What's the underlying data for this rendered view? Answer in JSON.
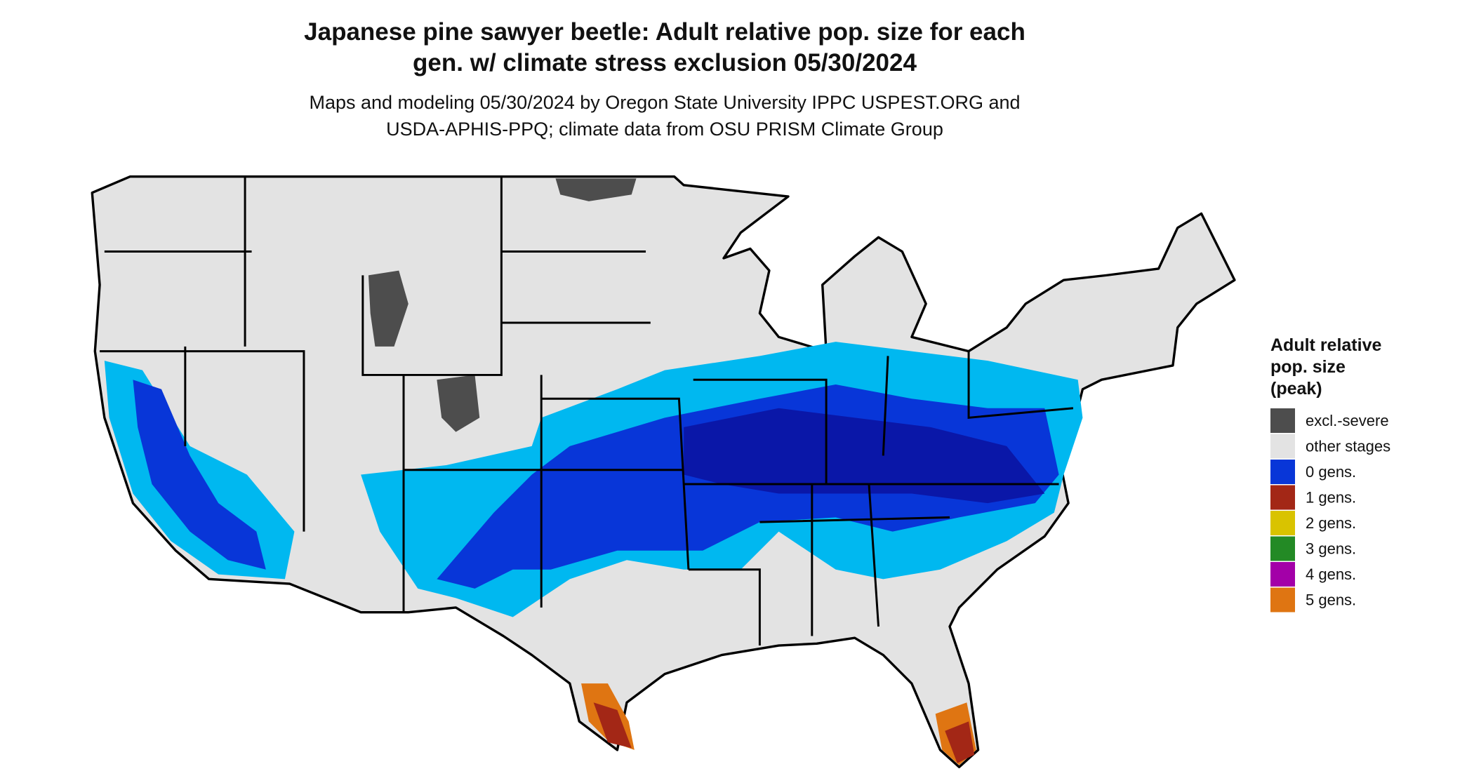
{
  "map": {
    "title_lines": [
      "Japanese pine sawyer beetle: Adult relative pop. size for each",
      "gen. w/ climate stress exclusion 05/30/2024"
    ],
    "subtitle_lines": [
      "Maps and modeling 05/30/2024 by Oregon State University IPPC USPEST.ORG and",
      "USDA-APHIS-PPQ; climate data from OSU PRISM Climate Group"
    ],
    "legend": {
      "title_lines": [
        "Adult relative",
        "pop. size",
        "(peak)"
      ],
      "items": [
        {
          "label": "excl.-severe",
          "color": "#4d4d4d"
        },
        {
          "label": "other stages",
          "color": "#e3e3e3"
        },
        {
          "label": "0 gens.",
          "color": "#0836d8"
        },
        {
          "label": "1 gens.",
          "color": "#a32716"
        },
        {
          "label": "2 gens.",
          "color": "#d9c300"
        },
        {
          "label": "3 gens.",
          "color": "#238a25"
        },
        {
          "label": "4 gens.",
          "color": "#a300a8"
        },
        {
          "label": "5 gens.",
          "color": "#df7512"
        }
      ]
    }
  }
}
